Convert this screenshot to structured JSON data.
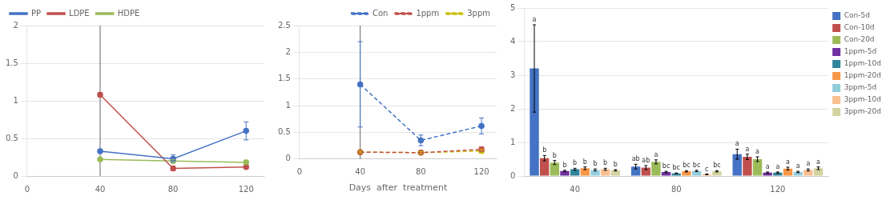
{
  "chart_data": [
    {
      "type": "line",
      "x": [
        40,
        80,
        120
      ],
      "xlim": [
        0,
        130
      ],
      "xticks": [
        0,
        40,
        80,
        120
      ],
      "ylim": [
        0.0,
        2.0
      ],
      "yticks": [
        0,
        0.5,
        1,
        1.5,
        2
      ],
      "grid": "y",
      "legend": "upper left",
      "marker": "circle",
      "vline_x": 40,
      "series": [
        {
          "name": "PP",
          "color": "#4472C4",
          "line_style": "solid",
          "values": [
            0.33,
            0.23,
            0.6
          ],
          "yerr": [
            0.02,
            0.05,
            0.12
          ]
        },
        {
          "name": "LDPE",
          "color": "#C0504D",
          "line_style": "solid",
          "values": [
            1.08,
            0.1,
            0.12
          ],
          "yerr": [
            0.03,
            0.03,
            0.02
          ]
        },
        {
          "name": "HDPE",
          "color": "#9BBB59",
          "line_style": "solid",
          "values": [
            0.22,
            0.2,
            0.18
          ],
          "yerr": [
            0.02,
            0.02,
            0.03
          ]
        }
      ]
    },
    {
      "type": "line",
      "x": [
        40,
        80,
        120
      ],
      "xlim": [
        0,
        130
      ],
      "xticks": [
        0,
        40,
        80,
        120
      ],
      "ylim": [
        0.0,
        2.5
      ],
      "yticks": [
        0,
        0.5,
        1,
        1.5,
        2,
        2.5
      ],
      "grid": "y",
      "legend": "upper right",
      "marker": "circle",
      "vline_x": 40,
      "xlabel": "Days  after  treatment",
      "series": [
        {
          "name": "Con",
          "color": "#4472C4",
          "line_style": "dashed",
          "values": [
            1.4,
            0.35,
            0.62
          ],
          "yerr": [
            0.8,
            0.1,
            0.15
          ]
        },
        {
          "name": "1ppm",
          "color": "#C0504D",
          "line_style": "dashed",
          "values": [
            0.13,
            0.12,
            0.18
          ],
          "yerr": [
            0.02,
            0.02,
            0.05
          ]
        },
        {
          "name": "3ppm",
          "color": "#CCC000",
          "line_style": "dashed",
          "values": [
            0.13,
            0.12,
            0.15
          ],
          "yerr": [
            0.02,
            0.02,
            0.03
          ]
        }
      ]
    },
    {
      "type": "bar",
      "categories": [
        "40",
        "80",
        "120"
      ],
      "ylim": [
        0.0,
        5.0
      ],
      "yticks": [
        0,
        1,
        2,
        3,
        4,
        5
      ],
      "grid": "y",
      "legend": "right",
      "series": [
        {
          "name": "Con-5d",
          "color": "#4472C4",
          "values": [
            3.2,
            0.28,
            0.65
          ],
          "yerr": [
            1.3,
            0.07,
            0.15
          ],
          "letters": [
            "a",
            "ab",
            "a"
          ]
        },
        {
          "name": "Con-10d",
          "color": "#C0504D",
          "values": [
            0.53,
            0.25,
            0.57
          ],
          "yerr": [
            0.08,
            0.06,
            0.08
          ],
          "letters": [
            "b",
            "ab",
            "a"
          ]
        },
        {
          "name": "Con-20d",
          "color": "#9BBB59",
          "values": [
            0.4,
            0.42,
            0.5
          ],
          "yerr": [
            0.06,
            0.06,
            0.07
          ],
          "letters": [
            "b",
            "a",
            "a"
          ]
        },
        {
          "name": "1ppm-5d",
          "color": "#7030A0",
          "values": [
            0.15,
            0.12,
            0.1
          ],
          "yerr": [
            0.02,
            0.02,
            0.02
          ],
          "letters": [
            "b",
            "bc",
            "a"
          ]
        },
        {
          "name": "1ppm-10d",
          "color": "#31849B",
          "values": [
            0.2,
            0.08,
            0.1
          ],
          "yerr": [
            0.03,
            0.01,
            0.02
          ],
          "letters": [
            "b",
            "bc",
            "a"
          ]
        },
        {
          "name": "1ppm-20d",
          "color": "#F79646",
          "values": [
            0.23,
            0.14,
            0.22
          ],
          "yerr": [
            0.04,
            0.02,
            0.04
          ],
          "letters": [
            "b",
            "bc",
            "a"
          ]
        },
        {
          "name": "3ppm-5d",
          "color": "#92CDDC",
          "values": [
            0.18,
            0.15,
            0.12
          ],
          "yerr": [
            0.03,
            0.02,
            0.02
          ],
          "letters": [
            "b",
            "bc",
            "a"
          ]
        },
        {
          "name": "3ppm-10d",
          "color": "#FABF8F",
          "values": [
            0.2,
            0.05,
            0.18
          ],
          "yerr": [
            0.03,
            0.01,
            0.03
          ],
          "letters": [
            "b",
            "c",
            "a"
          ]
        },
        {
          "name": "3ppm-20d",
          "color": "#D3D3A0",
          "values": [
            0.17,
            0.14,
            0.23
          ],
          "yerr": [
            0.02,
            0.02,
            0.04
          ],
          "letters": [
            "b",
            "bc",
            "a"
          ]
        }
      ]
    }
  ]
}
